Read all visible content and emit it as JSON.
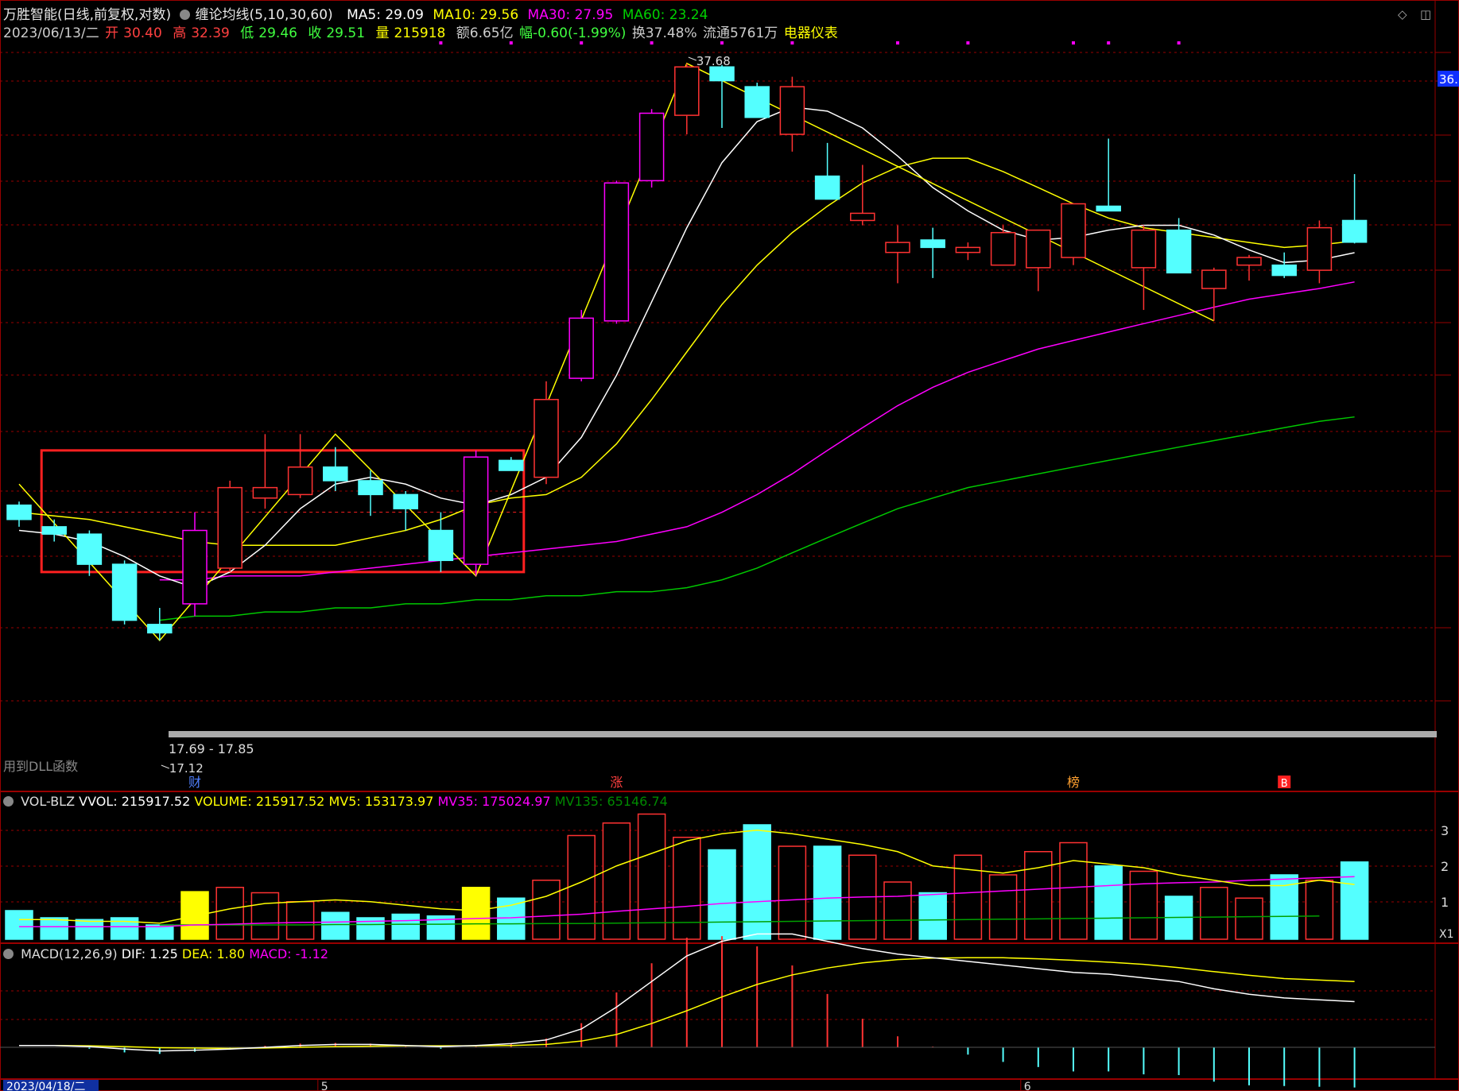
{
  "header": {
    "stock_title": "万胜智能(日线,前复权,对数)",
    "indicator_name": "缠论均线(5,10,30,60)",
    "ma5": "MA5: 29.09",
    "ma10": "MA10: 29.56",
    "ma30": "MA30: 27.95",
    "ma60": "MA60: 23.24",
    "date": "2023/06/13/二",
    "open_label": "开",
    "open": "30.40",
    "high_label": "高",
    "high": "32.39",
    "low_label": "低",
    "low": "29.46",
    "close_label": "收",
    "close": "29.51",
    "volume_label": "量",
    "volume": "215918",
    "amount": "额6.65亿",
    "change": "幅-0.60(-1.99%)",
    "turnover": "换37.48%",
    "float": "流通5761万",
    "industry": "电器仪表"
  },
  "colors": {
    "up": "#ff3232",
    "down": "#54ffff",
    "ma5": "#ffffff",
    "ma10": "#ffff00",
    "ma30": "#ff00ff",
    "ma60": "#00c800",
    "zigzag": "#ffff00",
    "box": "#ff2020",
    "support_band": "#aaaaaa",
    "grid": "#990000",
    "industry": "#ffff00"
  },
  "main_panel": {
    "price_label_right": "36.",
    "high_marker": "37.68",
    "low_marker": "17.12",
    "range_label": "17.69 - 17.85",
    "dll_note": "用到DLL函数",
    "events": [
      {
        "index": 5,
        "text": "财"
      },
      {
        "index": 17,
        "text": "涨"
      },
      {
        "index": 30,
        "text": "榜"
      },
      {
        "index": 36,
        "text": "B"
      }
    ]
  },
  "volume_panel": {
    "name": "VOL-BLZ",
    "vvol": "VVOL: 215917.52",
    "volume": "VOLUME: 215917.52",
    "mv5": "MV5: 153173.97",
    "mv35": "MV35: 175024.97",
    "mv135": "MV135: 65146.74",
    "right_ticks": [
      "3",
      "2",
      "1"
    ],
    "unit": "X1"
  },
  "macd_panel": {
    "name": "MACD(12,26,9)",
    "dif": "DIF: 1.25",
    "dea": "DEA: 1.80",
    "macd": "MACD: -1.12"
  },
  "x_axis": {
    "start_date": "2023/04/18/二",
    "month_labels": [
      {
        "index": 9,
        "text": "5"
      },
      {
        "index": 29,
        "text": "6"
      }
    ]
  },
  "chart_data": {
    "type": "candlestick",
    "scale": "log",
    "ohlc": [
      [
        20.6,
        20.7,
        20.0,
        20.2
      ],
      [
        20.0,
        20.2,
        19.6,
        19.8
      ],
      [
        19.8,
        19.9,
        18.7,
        19.0
      ],
      [
        19.0,
        19.1,
        17.5,
        17.6
      ],
      [
        17.5,
        17.9,
        17.12,
        17.3
      ],
      [
        18.0,
        20.4,
        17.7,
        19.9
      ],
      [
        18.9,
        21.3,
        18.8,
        21.1
      ],
      [
        20.8,
        22.7,
        20.5,
        21.1
      ],
      [
        20.9,
        22.7,
        20.8,
        21.7
      ],
      [
        21.7,
        22.3,
        21.0,
        21.3
      ],
      [
        21.3,
        21.6,
        20.3,
        20.9
      ],
      [
        20.9,
        21.0,
        19.9,
        20.5
      ],
      [
        19.9,
        20.4,
        18.8,
        19.1
      ],
      [
        19.0,
        22.2,
        18.7,
        22.0
      ],
      [
        21.9,
        22.0,
        21.6,
        21.6
      ],
      [
        21.4,
        24.4,
        21.2,
        23.8
      ],
      [
        24.5,
        26.9,
        24.4,
        26.6
      ],
      [
        26.5,
        32.1,
        26.4,
        32.0
      ],
      [
        32.1,
        35.4,
        31.8,
        35.2
      ],
      [
        35.1,
        37.68,
        34.2,
        37.5
      ],
      [
        37.5,
        37.6,
        34.5,
        36.8
      ],
      [
        36.5,
        36.7,
        35.0,
        35.0
      ],
      [
        34.2,
        37.0,
        33.4,
        36.5
      ],
      [
        32.3,
        33.8,
        31.3,
        31.3
      ],
      [
        30.4,
        32.8,
        30.2,
        30.7
      ],
      [
        29.1,
        30.2,
        27.9,
        29.5
      ],
      [
        29.6,
        30.1,
        28.1,
        29.3
      ],
      [
        29.1,
        29.5,
        28.8,
        29.3
      ],
      [
        28.6,
        30.2,
        28.6,
        29.9
      ],
      [
        28.5,
        30.0,
        27.6,
        30.0
      ],
      [
        28.9,
        31.0,
        28.6,
        31.1
      ],
      [
        31.0,
        34.0,
        30.8,
        30.8
      ],
      [
        28.5,
        30.2,
        26.9,
        30.0
      ],
      [
        30.0,
        30.5,
        28.3,
        28.3
      ],
      [
        27.7,
        28.5,
        26.5,
        28.4
      ],
      [
        28.6,
        29.0,
        28.0,
        28.9
      ],
      [
        28.6,
        29.1,
        28.1,
        28.2
      ],
      [
        28.4,
        30.4,
        27.9,
        30.1
      ],
      [
        30.4,
        32.39,
        29.46,
        29.51
      ]
    ],
    "ma5": [
      19.9,
      19.8,
      19.6,
      19.2,
      18.7,
      18.4,
      18.8,
      19.5,
      20.5,
      21.2,
      21.4,
      21.2,
      20.8,
      20.6,
      20.9,
      21.4,
      22.6,
      24.6,
      27.2,
      30.1,
      32.9,
      34.8,
      35.5,
      35.3,
      34.5,
      33.2,
      31.8,
      30.8,
      30.0,
      29.6,
      29.7,
      30.0,
      30.2,
      30.2,
      29.8,
      29.2,
      28.7,
      28.8,
      29.09
    ],
    "ma10": [
      20.4,
      20.3,
      20.2,
      20.0,
      19.8,
      19.6,
      19.5,
      19.5,
      19.5,
      19.5,
      19.7,
      19.9,
      20.2,
      20.6,
      20.8,
      20.9,
      21.4,
      22.4,
      23.8,
      25.4,
      27.1,
      28.6,
      29.9,
      31.0,
      32.0,
      32.7,
      33.1,
      33.1,
      32.5,
      31.8,
      31.1,
      30.5,
      30.1,
      29.9,
      29.7,
      29.5,
      29.3,
      29.4,
      29.56
    ],
    "ma30": [
      18.6,
      18.6,
      18.7,
      18.7,
      18.7,
      18.8,
      18.9,
      19.0,
      19.1,
      19.2,
      19.3,
      19.4,
      19.5,
      19.6,
      19.8,
      20.0,
      20.4,
      20.9,
      21.5,
      22.2,
      22.9,
      23.6,
      24.2,
      24.7,
      25.1,
      25.5,
      25.8,
      26.1,
      26.4,
      26.7,
      27.0,
      27.3,
      27.5,
      27.7,
      27.95
    ],
    "ma60": [
      17.6,
      17.7,
      17.7,
      17.8,
      17.8,
      17.9,
      17.9,
      18.0,
      18.0,
      18.1,
      18.1,
      18.2,
      18.2,
      18.3,
      18.3,
      18.4,
      18.6,
      18.9,
      19.3,
      19.7,
      20.1,
      20.5,
      20.8,
      21.1,
      21.3,
      21.5,
      21.7,
      21.9,
      22.1,
      22.3,
      22.5,
      22.7,
      22.9,
      23.1,
      23.24
    ],
    "ma_offset": 4,
    "zigzag": [
      {
        "i": 0,
        "price": 21.2
      },
      {
        "i": 4,
        "price": 17.12
      },
      {
        "i": 9,
        "price": 22.7
      },
      {
        "i": 13,
        "price": 18.7
      },
      {
        "i": 19,
        "price": 37.68
      },
      {
        "i": 34,
        "price": 26.5
      }
    ],
    "box": {
      "i_start": 1,
      "i_end": 14,
      "price_top": 22.2,
      "price_bottom": 18.8
    },
    "volume": [
      0.8,
      0.6,
      0.55,
      0.6,
      0.4,
      1.33,
      1.45,
      1.3,
      1.05,
      0.75,
      0.6,
      0.7,
      0.65,
      1.45,
      1.15,
      1.65,
      2.9,
      3.25,
      3.5,
      2.85,
      2.5,
      3.2,
      2.6,
      2.6,
      2.35,
      1.6,
      1.3,
      2.35,
      1.8,
      2.45,
      2.7,
      2.05,
      1.9,
      1.2,
      1.45,
      1.15,
      1.8,
      1.65,
      2.16
    ],
    "volume_highlight": [
      5,
      13
    ],
    "mv_yellow": [
      0.55,
      0.55,
      0.5,
      0.5,
      0.45,
      0.65,
      0.85,
      1.0,
      1.05,
      1.1,
      1.05,
      0.95,
      0.85,
      0.8,
      0.95,
      1.2,
      1.6,
      2.05,
      2.4,
      2.75,
      2.95,
      3.05,
      2.95,
      2.8,
      2.65,
      2.45,
      2.05,
      1.95,
      1.85,
      2.0,
      2.2,
      2.1,
      2.0,
      1.8,
      1.65,
      1.5,
      1.5,
      1.65,
      1.53
    ],
    "mv_magenta": [
      0.35,
      0.35,
      0.35,
      0.35,
      0.35,
      0.4,
      0.42,
      0.45,
      0.47,
      0.48,
      0.5,
      0.52,
      0.55,
      0.58,
      0.6,
      0.65,
      0.7,
      0.78,
      0.85,
      0.92,
      1.0,
      1.05,
      1.1,
      1.15,
      1.18,
      1.2,
      1.25,
      1.3,
      1.35,
      1.4,
      1.45,
      1.5,
      1.55,
      1.58,
      1.6,
      1.65,
      1.68,
      1.72,
      1.75
    ],
    "mv_green": [
      0.4,
      0.4,
      0.4,
      0.4,
      0.4,
      0.41,
      0.41,
      0.42,
      0.42,
      0.43,
      0.43,
      0.44,
      0.44,
      0.45,
      0.46,
      0.47,
      0.48,
      0.49,
      0.5,
      0.51,
      0.52,
      0.53,
      0.54,
      0.55,
      0.56,
      0.57,
      0.58,
      0.59,
      0.6,
      0.61,
      0.62,
      0.63,
      0.64,
      0.65
    ],
    "macd_dif": [
      0.05,
      0.05,
      0.02,
      -0.05,
      -0.1,
      -0.08,
      -0.05,
      0.0,
      0.05,
      0.08,
      0.08,
      0.05,
      0.02,
      0.05,
      0.1,
      0.2,
      0.5,
      1.1,
      1.8,
      2.5,
      2.9,
      3.1,
      3.1,
      2.9,
      2.7,
      2.55,
      2.45,
      2.35,
      2.25,
      2.15,
      2.05,
      2.0,
      1.9,
      1.8,
      1.6,
      1.45,
      1.35,
      1.3,
      1.25
    ],
    "macd_dea": [
      0.05,
      0.05,
      0.04,
      0.02,
      -0.01,
      -0.02,
      -0.03,
      -0.02,
      0.0,
      0.02,
      0.03,
      0.04,
      0.04,
      0.04,
      0.05,
      0.08,
      0.17,
      0.35,
      0.65,
      1.0,
      1.38,
      1.72,
      1.98,
      2.17,
      2.31,
      2.4,
      2.44,
      2.45,
      2.45,
      2.42,
      2.38,
      2.33,
      2.27,
      2.18,
      2.07,
      1.97,
      1.88,
      1.84,
      1.8
    ]
  }
}
